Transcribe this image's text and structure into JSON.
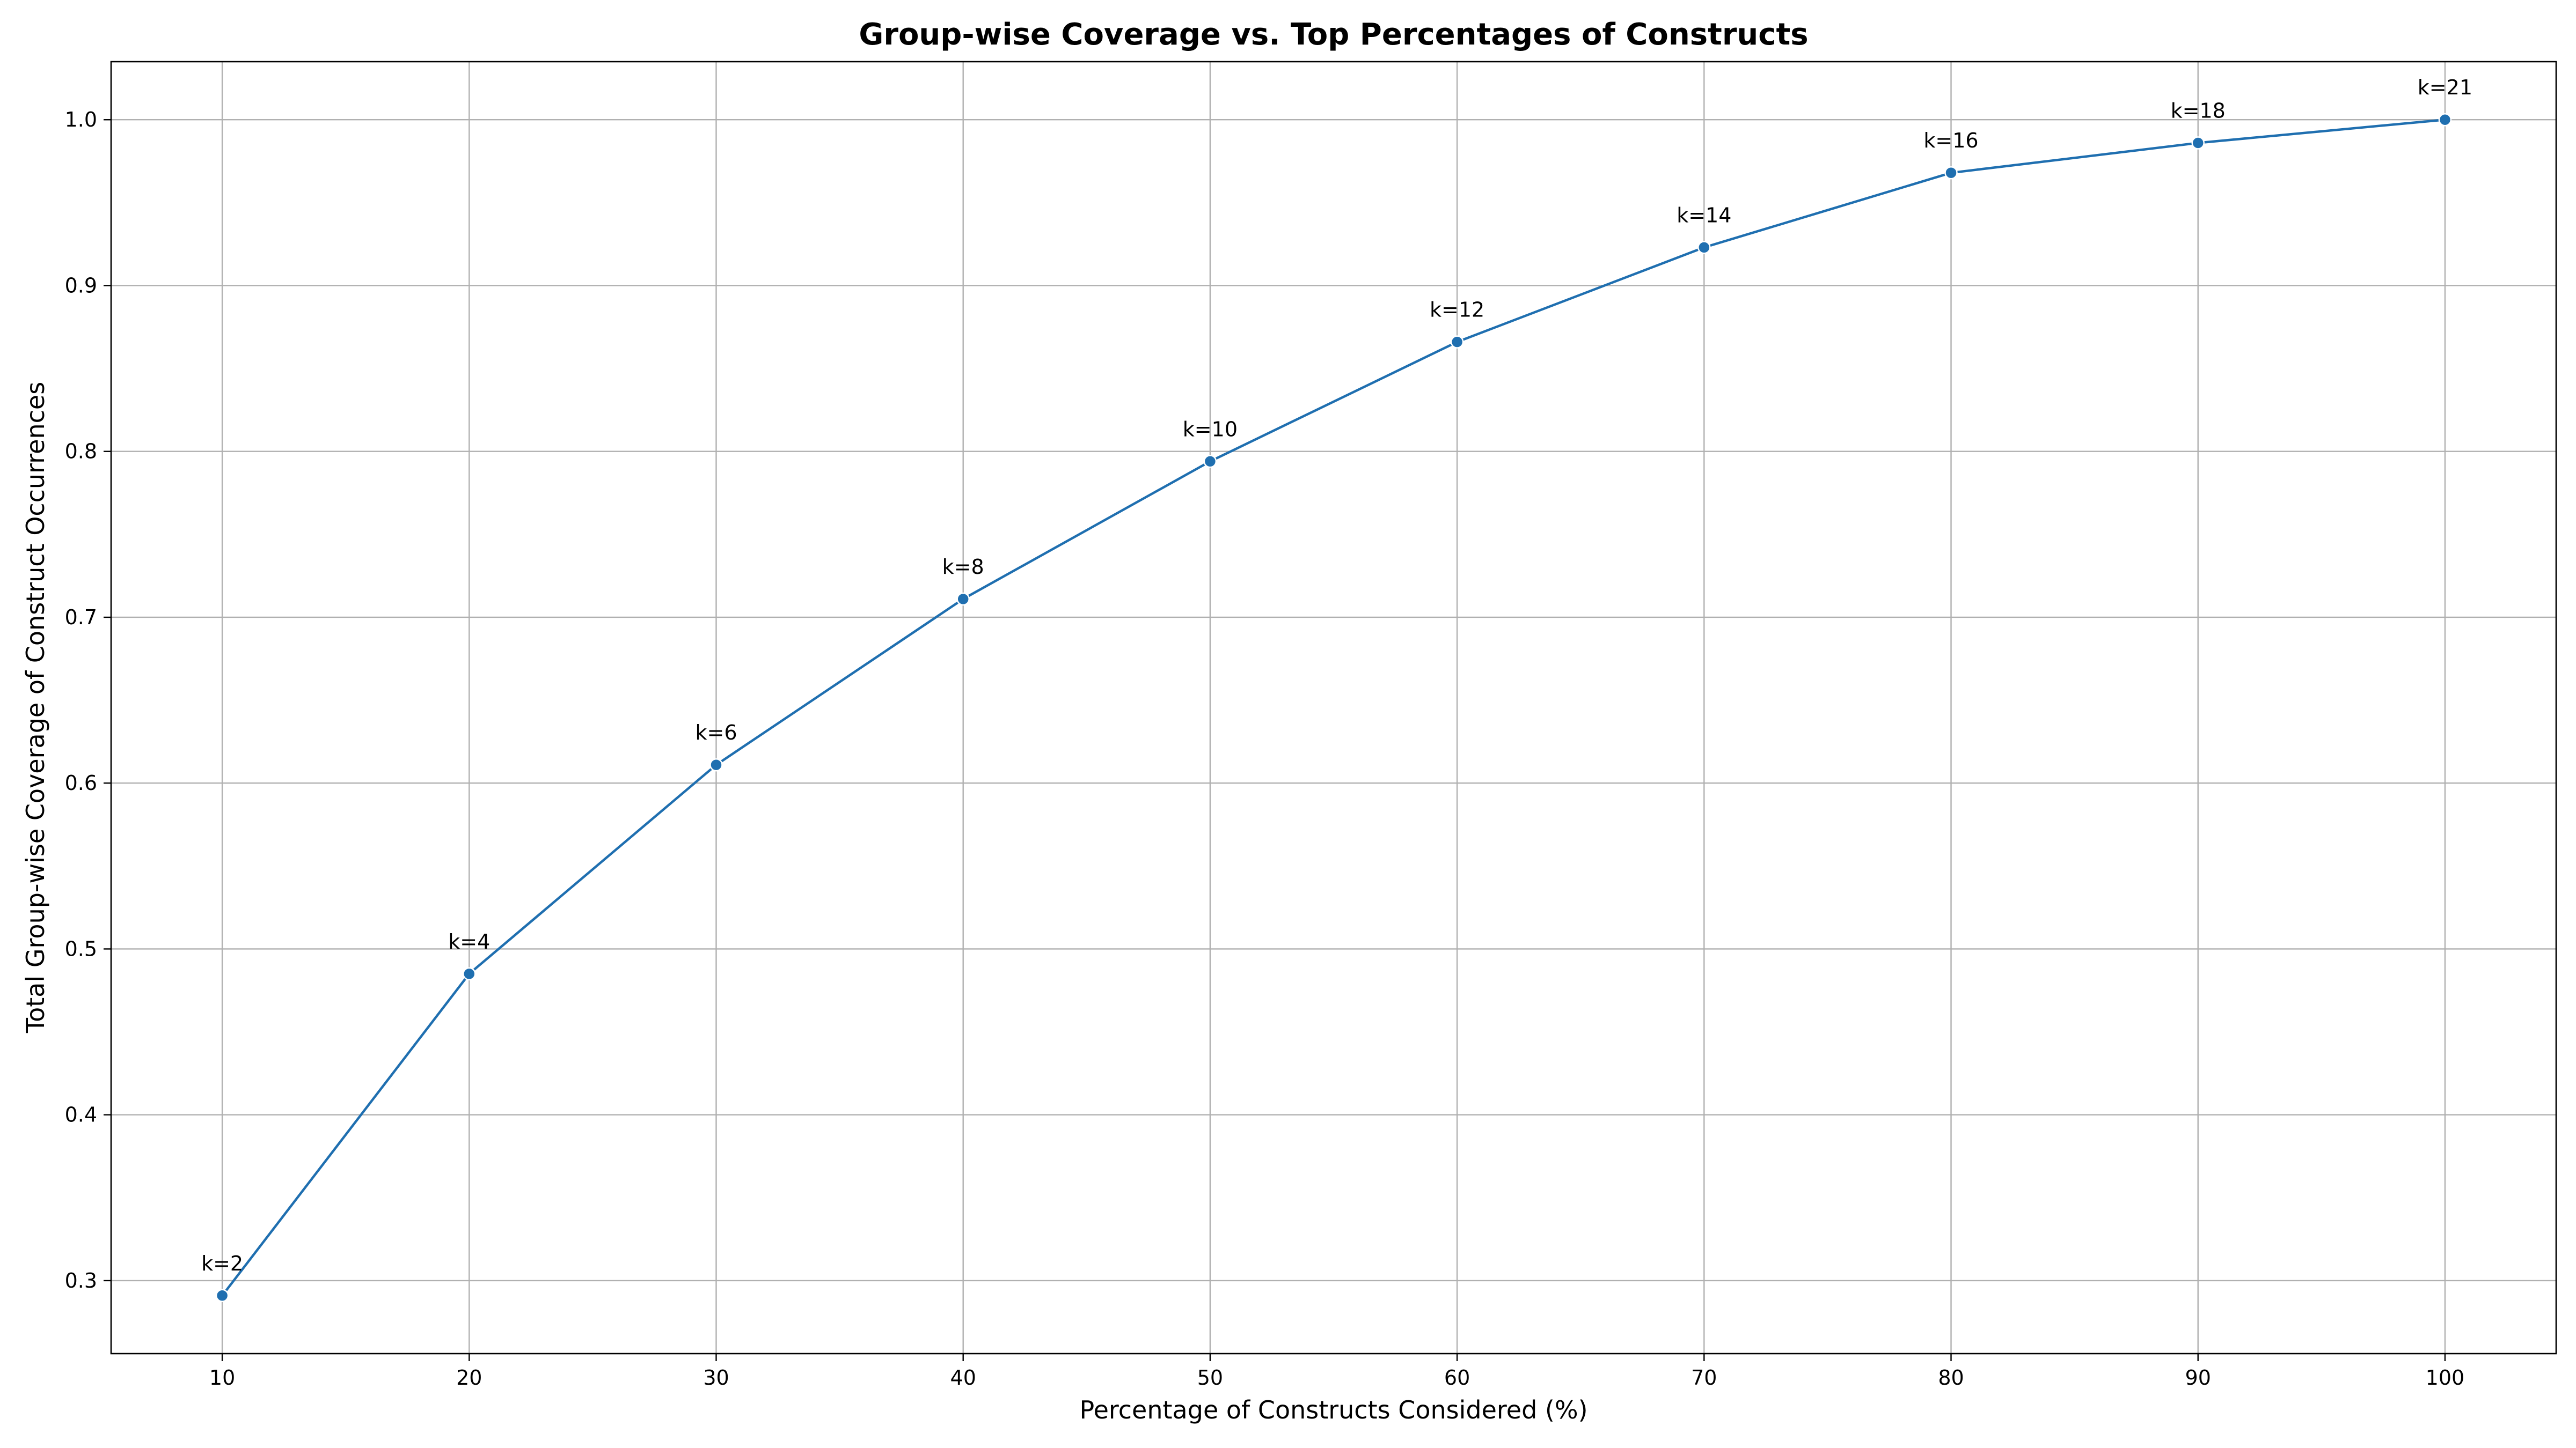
{
  "chart_data": {
    "type": "line",
    "title": "Group-wise Coverage vs. Top Percentages of Constructs",
    "xlabel": "Percentage of Constructs Considered (%)",
    "ylabel": "Total Group-wise Coverage of Construct Occurrences",
    "xlim": [
      5.5,
      104.5
    ],
    "ylim": [
      0.256,
      1.035
    ],
    "x_ticks": [
      10,
      20,
      30,
      40,
      50,
      60,
      70,
      80,
      90,
      100
    ],
    "x_tick_labels": [
      "10",
      "20",
      "30",
      "40",
      "50",
      "60",
      "70",
      "80",
      "90",
      "100"
    ],
    "y_ticks": [
      0.3,
      0.4,
      0.5,
      0.6,
      0.7,
      0.8,
      0.9,
      1.0
    ],
    "y_tick_labels": [
      "0.3",
      "0.4",
      "0.5",
      "0.6",
      "0.7",
      "0.8",
      "0.9",
      "1.0"
    ],
    "grid": true,
    "series": [
      {
        "color": "#1f6fb0",
        "x": [
          10,
          20,
          30,
          40,
          50,
          60,
          70,
          80,
          90,
          100
        ],
        "y": [
          0.291,
          0.485,
          0.611,
          0.711,
          0.794,
          0.866,
          0.923,
          0.968,
          0.986,
          1.0
        ],
        "point_labels": [
          "k=2",
          "k=4",
          "k=6",
          "k=8",
          "k=10",
          "k=12",
          "k=14",
          "k=16",
          "k=18",
          "k=21"
        ]
      }
    ]
  }
}
